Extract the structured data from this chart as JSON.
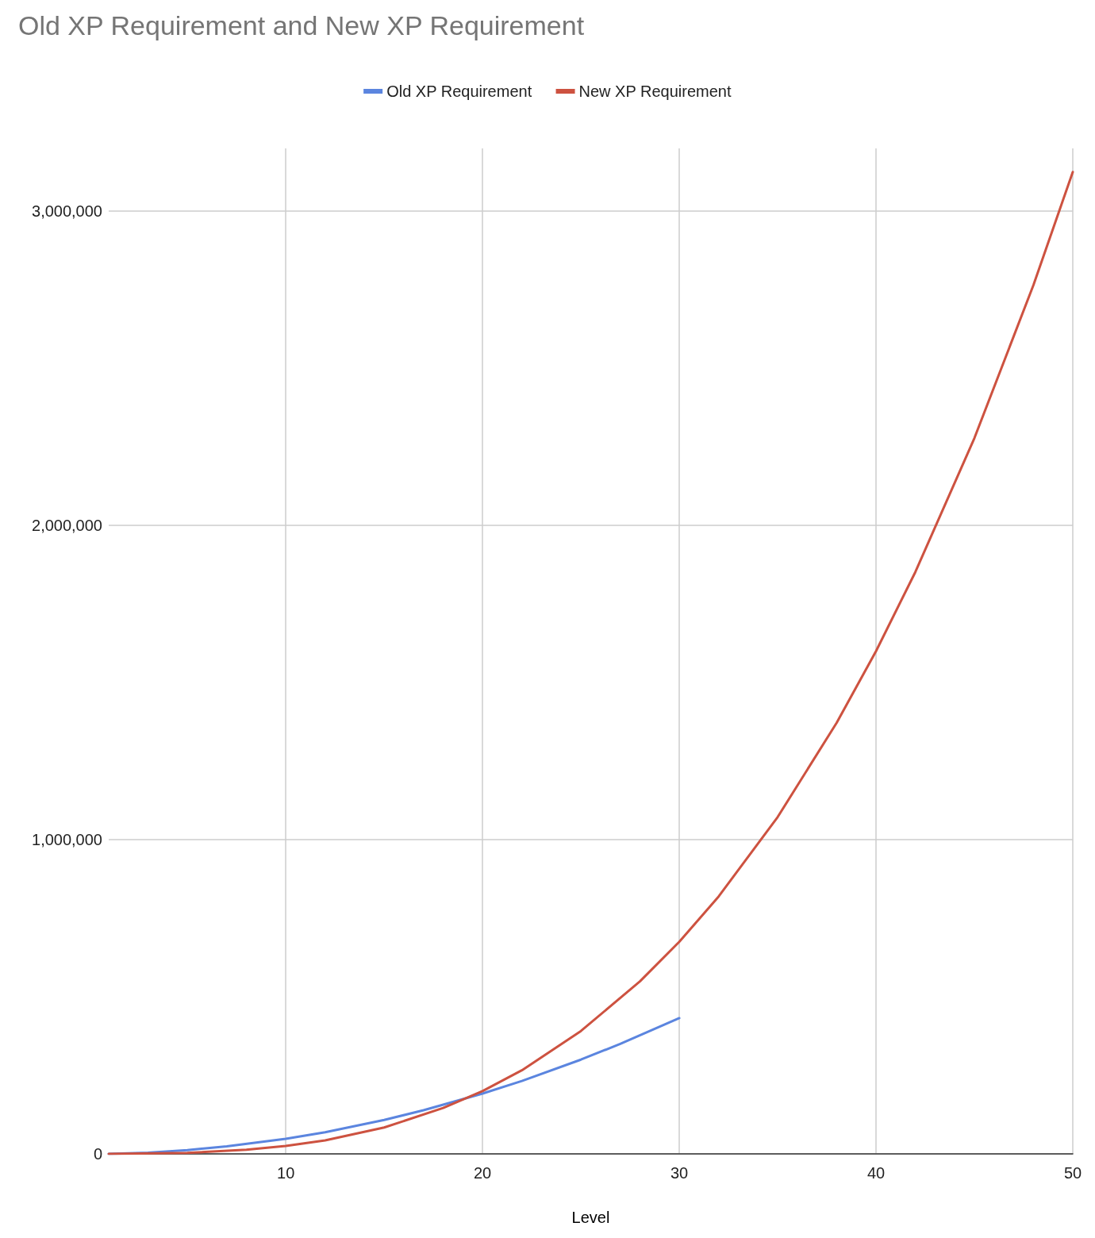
{
  "chart_data": {
    "type": "line",
    "title": "Old XP Requirement and New XP Requirement",
    "xlabel": "Level",
    "xlim": [
      1,
      50
    ],
    "xticks": [
      10,
      20,
      30,
      40,
      50
    ],
    "ylim": [
      0,
      3200000
    ],
    "yticks": [
      0,
      {
        "value": 1000000,
        "label": "1,000,000"
      },
      {
        "value": 2000000,
        "label": "2,000,000"
      },
      {
        "value": 3000000,
        "label": "3,000,000"
      }
    ],
    "grid": true,
    "legend": "top",
    "marker": "none",
    "line_style": "solid",
    "series": [
      {
        "name": "Old XP Requirement",
        "color": "#5b85df",
        "x": [
          1,
          3,
          5,
          7,
          10,
          12,
          15,
          17,
          20,
          22,
          25,
          27,
          30
        ],
        "values": [
          0,
          4000,
          12000,
          24000,
          48000,
          69000,
          108000,
          139000,
          192000,
          232000,
          300000,
          350000,
          432000
        ]
      },
      {
        "name": "New XP Requirement",
        "color": "#cd5240",
        "x": [
          1,
          5,
          8,
          10,
          12,
          15,
          18,
          20,
          22,
          25,
          28,
          30,
          32,
          35,
          38,
          40,
          42,
          45,
          48,
          50
        ],
        "values": [
          0,
          3000,
          13000,
          25000,
          43000,
          84000,
          146000,
          200000,
          266000,
          391000,
          549000,
          675000,
          819000,
          1072000,
          1372000,
          1600000,
          1852000,
          2278000,
          2765000,
          3125000
        ]
      }
    ]
  }
}
